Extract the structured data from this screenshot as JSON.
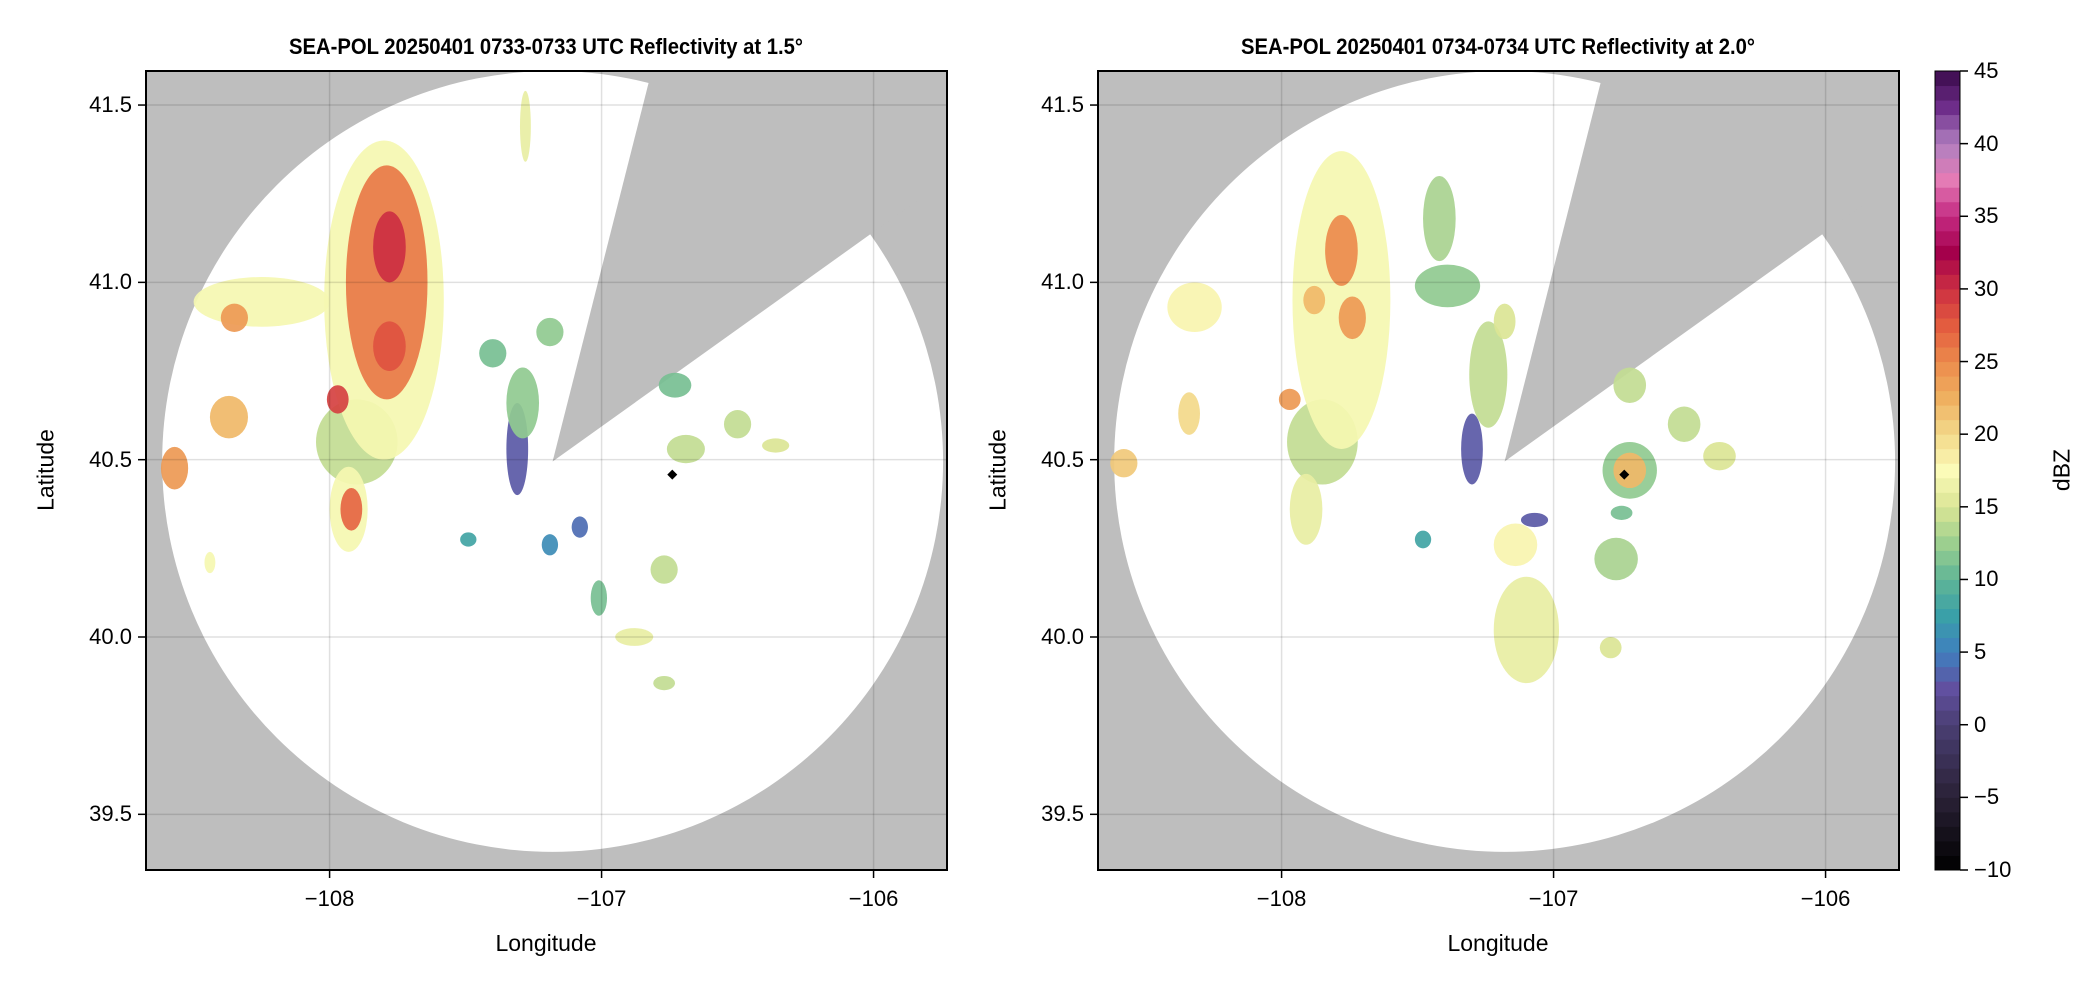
{
  "plots": [
    {
      "title": "SEA-POL 20250401 0733-0733 UTC Reflectivity at 1.5°",
      "xlabel": "Longitude",
      "ylabel": "Latitude",
      "xticks": [
        {
          "value": -108,
          "label": "−108"
        },
        {
          "value": -107,
          "label": "−107"
        },
        {
          "value": -106,
          "label": "−106"
        }
      ],
      "yticks": [
        {
          "value": 39.5,
          "label": "39.5"
        },
        {
          "value": 40.0,
          "label": "40.0"
        },
        {
          "value": 40.5,
          "label": "40.5"
        },
        {
          "value": 41.0,
          "label": "41.0"
        },
        {
          "value": 41.5,
          "label": "41.5"
        }
      ]
    },
    {
      "title": "SEA-POL 20250401 0734-0734 UTC Reflectivity at 2.0°",
      "xlabel": "Longitude",
      "ylabel": "Latitude",
      "xticks": [
        {
          "value": -108,
          "label": "−108"
        },
        {
          "value": -107,
          "label": "−107"
        },
        {
          "value": -106,
          "label": "−106"
        }
      ],
      "yticks": [
        {
          "value": 39.5,
          "label": "39.5"
        },
        {
          "value": 40.0,
          "label": "40.0"
        },
        {
          "value": 40.5,
          "label": "40.5"
        },
        {
          "value": 41.0,
          "label": "41.0"
        },
        {
          "value": 41.5,
          "label": "41.5"
        }
      ]
    }
  ],
  "colorbar": {
    "label": "dBZ",
    "range": [
      -10,
      45
    ],
    "ticks": [
      {
        "value": -10,
        "label": "−10"
      },
      {
        "value": -5,
        "label": "−5"
      },
      {
        "value": 0,
        "label": "0"
      },
      {
        "value": 5,
        "label": "5"
      },
      {
        "value": 10,
        "label": "10"
      },
      {
        "value": 15,
        "label": "15"
      },
      {
        "value": 20,
        "label": "20"
      },
      {
        "value": 25,
        "label": "25"
      },
      {
        "value": 30,
        "label": "30"
      },
      {
        "value": 35,
        "label": "35"
      },
      {
        "value": 40,
        "label": "40"
      },
      {
        "value": 45,
        "label": "45"
      }
    ],
    "stops": [
      [
        -10,
        "#000000"
      ],
      [
        -5,
        "#2a2136"
      ],
      [
        0,
        "#4a3f73"
      ],
      [
        2.5,
        "#6150a0"
      ],
      [
        5,
        "#3f7fbf"
      ],
      [
        7.5,
        "#3aa0a8"
      ],
      [
        10,
        "#5fb596"
      ],
      [
        12.5,
        "#9ccf8f"
      ],
      [
        15,
        "#dbe595"
      ],
      [
        17.5,
        "#fbfbb8"
      ],
      [
        20,
        "#f3d98a"
      ],
      [
        22.5,
        "#efb060"
      ],
      [
        25,
        "#ec8a4c"
      ],
      [
        27.5,
        "#e35c3f"
      ],
      [
        30,
        "#cc2f42"
      ],
      [
        32.5,
        "#a4004b"
      ],
      [
        35,
        "#c42a82"
      ],
      [
        37.5,
        "#e47bb5"
      ],
      [
        40,
        "#b080c0"
      ],
      [
        42.5,
        "#6e2d8a"
      ],
      [
        45,
        "#3a0a4a"
      ]
    ]
  },
  "colors": {
    "missing": "#bebebe",
    "coverage": "#ffffff",
    "grid": "#cccccc"
  },
  "chart_data": {
    "type": "heatmap",
    "xlim": [
      -108.675,
      -105.73
    ],
    "ylim": [
      39.343,
      41.596
    ],
    "grid": true,
    "radar_center": {
      "lon": -107.18,
      "lat": 40.495
    },
    "marker": {
      "lon": -106.74,
      "lat": 40.458
    },
    "panels": [
      {
        "echoes": [
          {
            "lon": -107.8,
            "lat": 40.95,
            "rx": 0.22,
            "ry": 0.45,
            "dbz": 17
          },
          {
            "lon": -108.25,
            "lat": 40.945,
            "rx": 0.25,
            "ry": 0.07,
            "dbz": 17
          },
          {
            "lon": -107.9,
            "lat": 40.55,
            "rx": 0.15,
            "ry": 0.12,
            "dbz": 14
          },
          {
            "lon": -107.93,
            "lat": 40.36,
            "rx": 0.07,
            "ry": 0.12,
            "dbz": 17
          },
          {
            "lon": -107.79,
            "lat": 41.0,
            "rx": 0.15,
            "ry": 0.33,
            "dbz": 26
          },
          {
            "lon": -107.78,
            "lat": 41.1,
            "rx": 0.06,
            "ry": 0.1,
            "dbz": 30
          },
          {
            "lon": -107.78,
            "lat": 40.82,
            "rx": 0.06,
            "ry": 0.07,
            "dbz": 28
          },
          {
            "lon": -107.97,
            "lat": 40.67,
            "rx": 0.04,
            "ry": 0.04,
            "dbz": 29
          },
          {
            "lon": -108.35,
            "lat": 40.9,
            "rx": 0.05,
            "ry": 0.04,
            "dbz": 24
          },
          {
            "lon": -108.37,
            "lat": 40.62,
            "rx": 0.07,
            "ry": 0.06,
            "dbz": 22
          },
          {
            "lon": -107.92,
            "lat": 40.36,
            "rx": 0.04,
            "ry": 0.06,
            "dbz": 27
          },
          {
            "lon": -108.57,
            "lat": 40.476,
            "rx": 0.05,
            "ry": 0.06,
            "dbz": 24
          },
          {
            "lon": -107.28,
            "lat": 41.44,
            "rx": 0.02,
            "ry": 0.1,
            "dbz": 16
          },
          {
            "lon": -108.44,
            "lat": 40.21,
            "rx": 0.02,
            "ry": 0.03,
            "dbz": 17
          },
          {
            "lon": -107.29,
            "lat": 40.66,
            "rx": 0.06,
            "ry": 0.1,
            "dbz": 12
          },
          {
            "lon": -107.31,
            "lat": 40.53,
            "rx": 0.04,
            "ry": 0.13,
            "dbz": 3
          },
          {
            "lon": -107.19,
            "lat": 40.86,
            "rx": 0.05,
            "ry": 0.04,
            "dbz": 12
          },
          {
            "lon": -107.4,
            "lat": 40.8,
            "rx": 0.05,
            "ry": 0.04,
            "dbz": 11
          },
          {
            "lon": -106.73,
            "lat": 40.71,
            "rx": 0.06,
            "ry": 0.035,
            "dbz": 11
          },
          {
            "lon": -106.69,
            "lat": 40.53,
            "rx": 0.07,
            "ry": 0.04,
            "dbz": 14
          },
          {
            "lon": -106.5,
            "lat": 40.6,
            "rx": 0.05,
            "ry": 0.04,
            "dbz": 14
          },
          {
            "lon": -106.36,
            "lat": 40.54,
            "rx": 0.05,
            "ry": 0.02,
            "dbz": 15
          },
          {
            "lon": -107.49,
            "lat": 40.275,
            "rx": 0.03,
            "ry": 0.02,
            "dbz": 8
          },
          {
            "lon": -107.08,
            "lat": 40.31,
            "rx": 0.03,
            "ry": 0.03,
            "dbz": 4
          },
          {
            "lon": -107.19,
            "lat": 40.26,
            "rx": 0.03,
            "ry": 0.03,
            "dbz": 6
          },
          {
            "lon": -107.01,
            "lat": 40.11,
            "rx": 0.03,
            "ry": 0.05,
            "dbz": 11
          },
          {
            "lon": -106.77,
            "lat": 40.19,
            "rx": 0.05,
            "ry": 0.04,
            "dbz": 14
          },
          {
            "lon": -106.88,
            "lat": 40.0,
            "rx": 0.07,
            "ry": 0.025,
            "dbz": 16
          },
          {
            "lon": -106.77,
            "lat": 39.87,
            "rx": 0.04,
            "ry": 0.02,
            "dbz": 14
          }
        ]
      },
      {
        "echoes": [
          {
            "lon": -107.78,
            "lat": 40.95,
            "rx": 0.18,
            "ry": 0.42,
            "dbz": 17
          },
          {
            "lon": -107.91,
            "lat": 40.36,
            "rx": 0.06,
            "ry": 0.1,
            "dbz": 16
          },
          {
            "lon": -107.85,
            "lat": 40.55,
            "rx": 0.13,
            "ry": 0.12,
            "dbz": 14
          },
          {
            "lon": -107.78,
            "lat": 41.09,
            "rx": 0.06,
            "ry": 0.1,
            "dbz": 25
          },
          {
            "lon": -107.74,
            "lat": 40.9,
            "rx": 0.05,
            "ry": 0.06,
            "dbz": 24
          },
          {
            "lon": -107.88,
            "lat": 40.95,
            "rx": 0.04,
            "ry": 0.04,
            "dbz": 22
          },
          {
            "lon": -107.97,
            "lat": 40.67,
            "rx": 0.04,
            "ry": 0.03,
            "dbz": 24
          },
          {
            "lon": -108.32,
            "lat": 40.93,
            "rx": 0.1,
            "ry": 0.07,
            "dbz": 18
          },
          {
            "lon": -108.34,
            "lat": 40.63,
            "rx": 0.04,
            "ry": 0.06,
            "dbz": 20
          },
          {
            "lon": -108.58,
            "lat": 40.49,
            "rx": 0.05,
            "ry": 0.04,
            "dbz": 21
          },
          {
            "lon": -107.42,
            "lat": 41.18,
            "rx": 0.06,
            "ry": 0.12,
            "dbz": 13
          },
          {
            "lon": -107.39,
            "lat": 40.99,
            "rx": 0.12,
            "ry": 0.06,
            "dbz": 12
          },
          {
            "lon": -107.24,
            "lat": 40.74,
            "rx": 0.07,
            "ry": 0.15,
            "dbz": 14
          },
          {
            "lon": -107.3,
            "lat": 40.53,
            "rx": 0.04,
            "ry": 0.1,
            "dbz": 3
          },
          {
            "lon": -107.18,
            "lat": 40.89,
            "rx": 0.04,
            "ry": 0.05,
            "dbz": 15
          },
          {
            "lon": -106.72,
            "lat": 40.47,
            "rx": 0.1,
            "ry": 0.08,
            "dbz": 12
          },
          {
            "lon": -106.72,
            "lat": 40.47,
            "rx": 0.06,
            "ry": 0.05,
            "dbz": 22
          },
          {
            "lon": -106.72,
            "lat": 40.71,
            "rx": 0.06,
            "ry": 0.05,
            "dbz": 14
          },
          {
            "lon": -106.52,
            "lat": 40.6,
            "rx": 0.06,
            "ry": 0.05,
            "dbz": 14
          },
          {
            "lon": -106.39,
            "lat": 40.51,
            "rx": 0.06,
            "ry": 0.04,
            "dbz": 15
          },
          {
            "lon": -107.14,
            "lat": 40.26,
            "rx": 0.08,
            "ry": 0.06,
            "dbz": 18
          },
          {
            "lon": -107.1,
            "lat": 40.02,
            "rx": 0.12,
            "ry": 0.15,
            "dbz": 16
          },
          {
            "lon": -106.77,
            "lat": 40.22,
            "rx": 0.08,
            "ry": 0.06,
            "dbz": 13
          },
          {
            "lon": -106.75,
            "lat": 40.35,
            "rx": 0.04,
            "ry": 0.02,
            "dbz": 11
          },
          {
            "lon": -107.48,
            "lat": 40.275,
            "rx": 0.03,
            "ry": 0.025,
            "dbz": 8
          },
          {
            "lon": -107.07,
            "lat": 40.33,
            "rx": 0.05,
            "ry": 0.02,
            "dbz": 3
          },
          {
            "lon": -106.79,
            "lat": 39.97,
            "rx": 0.04,
            "ry": 0.03,
            "dbz": 15
          }
        ]
      }
    ]
  }
}
